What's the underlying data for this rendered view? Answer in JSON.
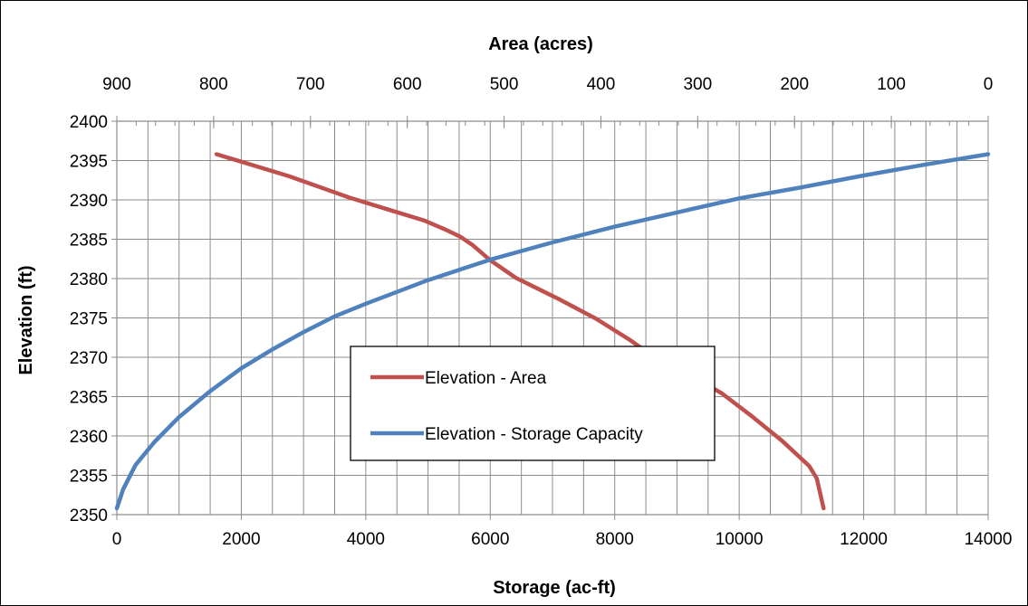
{
  "chart_data": {
    "type": "line",
    "title": "",
    "x_bottom": {
      "label": "Storage (ac-ft)",
      "range": [
        0,
        14000
      ],
      "ticks": [
        0,
        2000,
        4000,
        6000,
        8000,
        10000,
        12000,
        14000
      ],
      "minor_step": 500
    },
    "x_top": {
      "label": "Area (acres)",
      "range": [
        900,
        0
      ],
      "reversed": true,
      "ticks": [
        900,
        800,
        700,
        600,
        500,
        400,
        300,
        200,
        100,
        0
      ],
      "minor_step": 20
    },
    "y": {
      "label": "Elevation (ft)",
      "range": [
        2350,
        2400
      ],
      "ticks": [
        2350,
        2355,
        2360,
        2365,
        2370,
        2375,
        2380,
        2385,
        2390,
        2395,
        2400
      ]
    },
    "grid": true,
    "legend": {
      "placement": "center",
      "entries": [
        {
          "name": "Elevation - Area",
          "color": "#C0504D"
        },
        {
          "name": "Elevation - Storage Capacity",
          "color": "#4F81BD"
        }
      ]
    },
    "series": [
      {
        "name": "Elevation - Area",
        "axis_x": "top",
        "color": "#C0504D",
        "points": [
          [
            797,
            2395.8
          ],
          [
            722,
            2393
          ],
          [
            660,
            2390.3
          ],
          [
            615,
            2388.6
          ],
          [
            583,
            2387.4
          ],
          [
            560,
            2386.2
          ],
          [
            545,
            2385.3
          ],
          [
            533,
            2384.3
          ],
          [
            515,
            2382.4
          ],
          [
            488,
            2380.1
          ],
          [
            445,
            2377.5
          ],
          [
            405,
            2374.9
          ],
          [
            370,
            2372.2
          ],
          [
            340,
            2369.6
          ],
          [
            300,
            2367.2
          ],
          [
            275,
            2365.4
          ],
          [
            245,
            2362.6
          ],
          [
            213,
            2359.4
          ],
          [
            185,
            2356.2
          ],
          [
            177,
            2354.6
          ],
          [
            170,
            2350.8
          ]
        ]
      },
      {
        "name": "Elevation - Storage Capacity",
        "axis_x": "bottom",
        "color": "#4F81BD",
        "points": [
          [
            0,
            2350.8
          ],
          [
            100,
            2353.2
          ],
          [
            300,
            2356.3
          ],
          [
            600,
            2359.2
          ],
          [
            1000,
            2362.4
          ],
          [
            1500,
            2365.7
          ],
          [
            2000,
            2368.6
          ],
          [
            2500,
            2371
          ],
          [
            3000,
            2373.2
          ],
          [
            3500,
            2375.2
          ],
          [
            4000,
            2376.8
          ],
          [
            5000,
            2379.8
          ],
          [
            6000,
            2382.4
          ],
          [
            7000,
            2384.6
          ],
          [
            8000,
            2386.6
          ],
          [
            9000,
            2388.4
          ],
          [
            10000,
            2390.2
          ],
          [
            11000,
            2391.6
          ],
          [
            12000,
            2393.1
          ],
          [
            13000,
            2394.5
          ],
          [
            14000,
            2395.8
          ]
        ]
      }
    ]
  }
}
